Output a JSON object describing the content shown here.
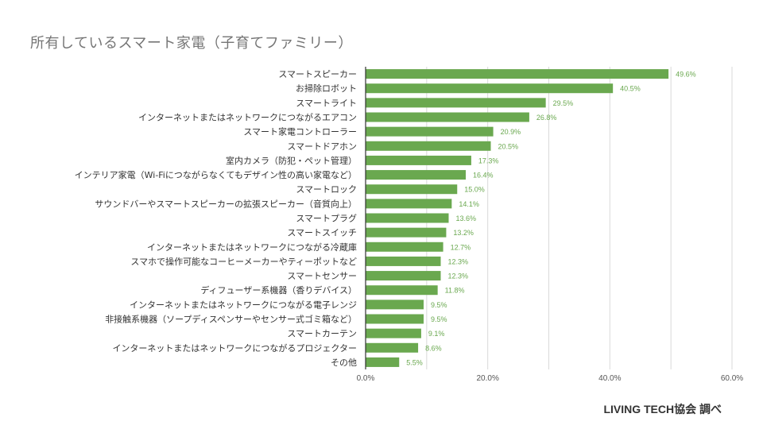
{
  "title": "所有しているスマート家電（子育てファミリー）",
  "credit": "LIVING TECH協会 調べ",
  "colors": {
    "bar": "#6aa84f",
    "label": "#6aa84f",
    "grid": "#d9d9d9",
    "axis": "#333333"
  },
  "chart_data": {
    "type": "bar",
    "orientation": "horizontal",
    "title": "所有しているスマート家電（子育てファミリー）",
    "categories": [
      "スマートスピーカー",
      "お掃除ロボット",
      "スマートライト",
      "インターネットまたはネットワークにつながるエアコン",
      "スマート家電コントローラー",
      "スマートドアホン",
      "室内カメラ（防犯・ペット管理）",
      "インテリア家電（Wi-Fiにつながらなくてもデザイン性の高い家電など）",
      "スマートロック",
      "サウンドバーやスマートスピーカーの拡張スピーカー（音質向上）",
      "スマートプラグ",
      "スマートスイッチ",
      "インターネットまたはネットワークにつながる冷蔵庫",
      "スマホで操作可能なコーヒーメーカーやティーポットなど",
      "スマートセンサー",
      "ディフューザー系機器（香りデバイス）",
      "インターネットまたはネットワークにつながる電子レンジ",
      "非接触系機器（ソープディスペンサーやセンサー式ゴミ箱など）",
      "スマートカーテン",
      "インターネットまたはネットワークにつながるプロジェクター",
      "その他"
    ],
    "values": [
      49.6,
      40.5,
      29.5,
      26.8,
      20.9,
      20.5,
      17.3,
      16.4,
      15.0,
      14.1,
      13.6,
      13.2,
      12.7,
      12.3,
      12.3,
      11.8,
      9.5,
      9.5,
      9.1,
      8.6,
      5.5
    ],
    "value_labels": [
      "49.6%",
      "40.5%",
      "29.5%",
      "26.8%",
      "20.9%",
      "20.5%",
      "17.3%",
      "16.4%",
      "15.0%",
      "14.1%",
      "13.6%",
      "13.2%",
      "12.7%",
      "12.3%",
      "12.3%",
      "11.8%",
      "9.5%",
      "9.5%",
      "9.1%",
      "8.6%",
      "5.5%"
    ],
    "xlim": [
      0,
      60
    ],
    "xticks": [
      0,
      20,
      40,
      60
    ],
    "xtick_labels": [
      "0.0%",
      "20.0%",
      "40.0%",
      "60.0%"
    ],
    "grid": true,
    "legend": false
  }
}
